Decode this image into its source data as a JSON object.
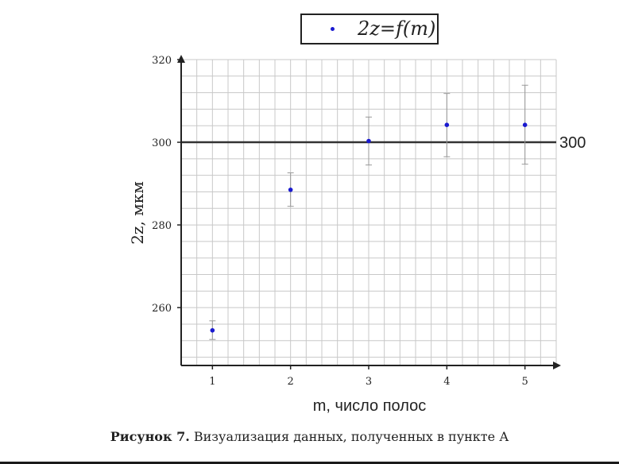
{
  "caption": {
    "label": "Рисунок 7.",
    "text": "Визуализация данных, полученных в пункте А"
  },
  "legend": {
    "entry": "2z=f(m)",
    "position": "top-center",
    "marker_color": "#1a1ad0"
  },
  "colors": {
    "points": "#1a1ad0",
    "error_bars": "#999999",
    "grid": "#c8c8c8",
    "axes": "#222222",
    "reference_line": "#333333"
  },
  "chart_data": {
    "type": "scatter",
    "title": "",
    "xlabel": "m, число полос",
    "ylabel": "2z, мкм",
    "xlim": [
      0.6,
      5.4
    ],
    "ylim": [
      246,
      320
    ],
    "x_ticks": [
      1,
      2,
      3,
      4,
      5
    ],
    "y_ticks": [
      260,
      280,
      300,
      320
    ],
    "grid": true,
    "series": [
      {
        "name": "2z=f(m)",
        "x": [
          1,
          2,
          3,
          4,
          5
        ],
        "y": [
          254.5,
          288.5,
          300.3,
          304.2,
          304.2
        ],
        "y_err_low": [
          252.3,
          284.5,
          294.5,
          296.5,
          294.7
        ],
        "y_err_high": [
          256.8,
          292.6,
          306.1,
          311.8,
          313.8
        ]
      }
    ],
    "reference_line": {
      "y": 300,
      "label": "300"
    }
  }
}
